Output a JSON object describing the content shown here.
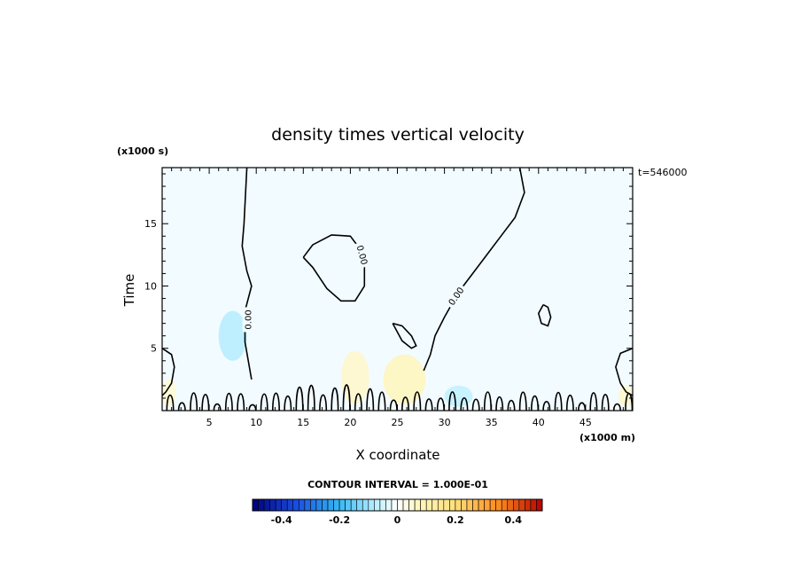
{
  "chart_data": {
    "type": "heatmap",
    "title": "density times vertical velocity",
    "xlabel": "X coordinate",
    "ylabel": "Time",
    "x_units": "(x1000 m)",
    "y_units": "(x1000 s)",
    "time_stamp": "t=546000",
    "xlim": [
      0,
      50
    ],
    "ylim": [
      0,
      19.5
    ],
    "x_ticks": [
      5,
      10,
      15,
      20,
      25,
      30,
      35,
      40,
      45
    ],
    "y_ticks": [
      5,
      10,
      15
    ],
    "contour_interval_text": "CONTOUR INTERVAL = 1.000E-01",
    "contour_label": "0.00",
    "colorbar": {
      "min": -0.5,
      "max": 0.5,
      "ticks": [
        -0.4,
        -0.2,
        0,
        0.2,
        0.4
      ],
      "tick_labels": [
        "-0.4",
        "-0.2",
        "0",
        "0.2",
        "0.4"
      ]
    },
    "zero_contours": [
      {
        "name": "left-contour",
        "points": [
          [
            0,
            5
          ],
          [
            1,
            4.5
          ],
          [
            1.3,
            3.5
          ],
          [
            1,
            2.2
          ],
          [
            0.4,
            1.5
          ],
          [
            0,
            1.2
          ]
        ]
      },
      {
        "name": "west-boundary-contour",
        "points": [
          [
            9,
            19.5
          ],
          [
            8.7,
            15
          ],
          [
            8.5,
            13.2
          ],
          [
            9,
            11.2
          ],
          [
            9.5,
            10
          ],
          [
            8.8,
            8
          ],
          [
            8.8,
            5.5
          ],
          [
            9.2,
            3.8
          ],
          [
            9.5,
            2.5
          ]
        ]
      },
      {
        "name": "central-loop",
        "points": [
          [
            15,
            12.3
          ],
          [
            16,
            13.3
          ],
          [
            18,
            14.1
          ],
          [
            20,
            14
          ],
          [
            21,
            13
          ],
          [
            21.5,
            11.5
          ],
          [
            21.5,
            10
          ],
          [
            20.5,
            8.8
          ],
          [
            19,
            8.8
          ],
          [
            17.5,
            9.8
          ],
          [
            16,
            11.5
          ],
          [
            15,
            12.3
          ]
        ]
      },
      {
        "name": "east-boundary-contour",
        "points": [
          [
            38,
            19.5
          ],
          [
            38.5,
            17.5
          ],
          [
            37.5,
            15.5
          ],
          [
            36,
            14
          ],
          [
            34.5,
            12.5
          ],
          [
            33,
            11
          ],
          [
            31.5,
            9.5
          ],
          [
            30,
            7.5
          ],
          [
            29,
            6
          ],
          [
            28.5,
            4.5
          ],
          [
            27.8,
            3.2
          ]
        ]
      },
      {
        "name": "small-loop-west",
        "points": [
          [
            24.5,
            7
          ],
          [
            25.5,
            6.8
          ],
          [
            26.5,
            6
          ],
          [
            27,
            5.2
          ],
          [
            26.5,
            5
          ],
          [
            25.5,
            5.6
          ],
          [
            25,
            6.3
          ],
          [
            24.5,
            7
          ]
        ]
      },
      {
        "name": "small-loop-east",
        "points": [
          [
            40.5,
            8.5
          ],
          [
            41,
            8.3
          ],
          [
            41.3,
            7.5
          ],
          [
            41,
            6.8
          ],
          [
            40.3,
            7
          ],
          [
            40,
            7.8
          ],
          [
            40.5,
            8.5
          ]
        ]
      },
      {
        "name": "right-contour",
        "points": [
          [
            50,
            5
          ],
          [
            48.7,
            4.6
          ],
          [
            48.2,
            3.5
          ],
          [
            48.7,
            2.2
          ],
          [
            49.3,
            1.5
          ],
          [
            50,
            1.2
          ]
        ]
      }
    ],
    "shaded_patches": [
      {
        "x": [
          6,
          9
        ],
        "y": [
          4,
          8
        ],
        "value": -0.08
      },
      {
        "x": [
          19,
          22
        ],
        "y": [
          0.5,
          4.8
        ],
        "value": 0.06
      },
      {
        "x": [
          23.5,
          28
        ],
        "y": [
          0.5,
          4.5
        ],
        "value": 0.08
      },
      {
        "x": [
          30,
          33
        ],
        "y": [
          0.3,
          2
        ],
        "value": -0.07
      },
      {
        "x": [
          48.5,
          50
        ],
        "y": [
          0.3,
          2
        ],
        "value": 0.06
      },
      {
        "x": [
          0,
          1.5
        ],
        "y": [
          0.3,
          2.5
        ],
        "value": 0.05
      }
    ]
  }
}
